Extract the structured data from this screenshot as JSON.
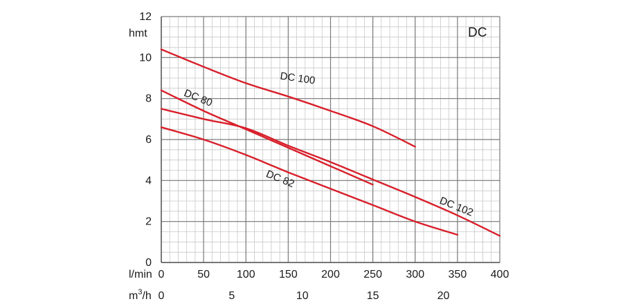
{
  "chart_data": {
    "type": "line",
    "title": "",
    "badge": "DC",
    "ylabel": "hmt",
    "xlabel_primary": "l/min",
    "xlabel_secondary_base": "m",
    "xlabel_secondary_sup": "3",
    "xlabel_secondary_tail": "/h",
    "xlim": [
      0,
      400
    ],
    "ylim": [
      0,
      12
    ],
    "x_ticks": [
      "0",
      "50",
      "100",
      "150",
      "200",
      "250",
      "300",
      "350",
      "400"
    ],
    "x_ticks_secondary": [
      "0",
      "5",
      "10",
      "15",
      "20"
    ],
    "y_ticks": [
      "0",
      "2",
      "4",
      "6",
      "8",
      "10",
      "12"
    ],
    "grid": true,
    "series": [
      {
        "name": "DC 100",
        "x": [
          0,
          50,
          100,
          150,
          200,
          250,
          300
        ],
        "y": [
          10.4,
          9.55,
          8.75,
          8.1,
          7.4,
          6.65,
          5.65
        ],
        "label": "DC 100",
        "label_at": [
          140,
          8.95
        ],
        "label_rot": 8
      },
      {
        "name": "DC 80",
        "x": [
          0,
          50,
          100,
          150,
          200,
          250
        ],
        "y": [
          8.4,
          7.4,
          6.5,
          5.6,
          4.7,
          3.8
        ],
        "label": "DC 80",
        "label_at": [
          26,
          8.15
        ],
        "label_rot": 22
      },
      {
        "name": "DC 102",
        "x": [
          0,
          50,
          100,
          150,
          200,
          250,
          300,
          350,
          400
        ],
        "y": [
          7.5,
          7.0,
          6.55,
          5.7,
          4.9,
          4.05,
          3.2,
          2.3,
          1.3
        ],
        "label": "DC 102",
        "label_at": [
          328,
          2.9
        ],
        "label_rot": 22
      },
      {
        "name": "DC 82",
        "x": [
          0,
          50,
          100,
          150,
          200,
          250,
          300,
          350
        ],
        "y": [
          6.6,
          6.0,
          5.25,
          4.4,
          3.6,
          2.8,
          2.0,
          1.35
        ],
        "label": "DC 82",
        "label_at": [
          123,
          4.2
        ],
        "label_rot": 22
      }
    ],
    "colors": {
      "curve": "#d81f2a",
      "grid_major": "#7a7a7a",
      "grid_minor": "#c8c8c8",
      "axis": "#555555"
    }
  }
}
